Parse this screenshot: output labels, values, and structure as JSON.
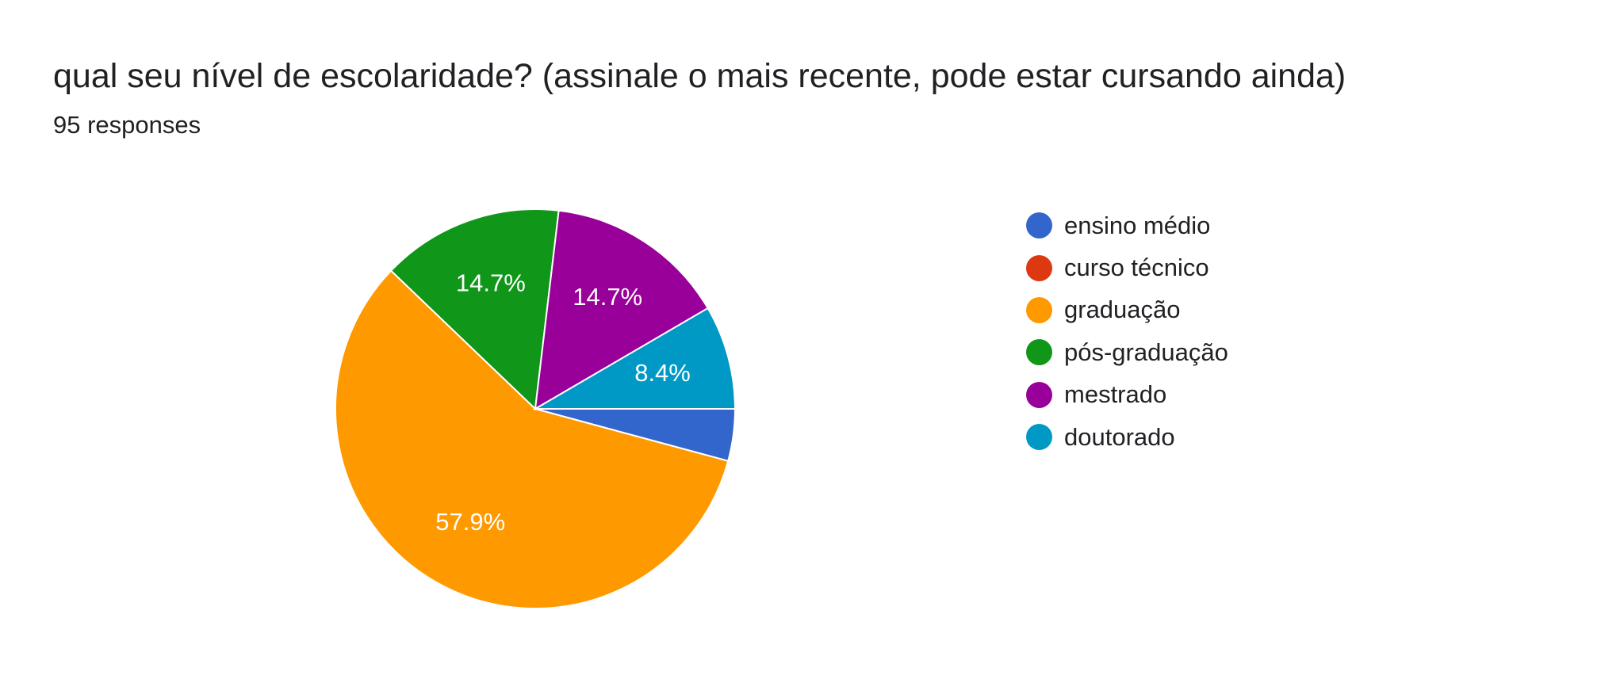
{
  "question": {
    "title": "qual seu nível de escolaridade? (assinale o mais recente, pode estar cursando ainda)",
    "responses": "95 responses"
  },
  "chart_data": {
    "type": "pie",
    "total_responses": 95,
    "slices": [
      {
        "label": "ensino médio",
        "percent": 4.2,
        "display": "",
        "color": "#3366cc"
      },
      {
        "label": "curso técnico",
        "percent": 0,
        "display": "",
        "color": "#dc3912"
      },
      {
        "label": "graduação",
        "percent": 57.9,
        "display": "57.9%",
        "color": "#ff9900"
      },
      {
        "label": "pós-graduação",
        "percent": 14.7,
        "display": "14.7%",
        "color": "#109618"
      },
      {
        "label": "mestrado",
        "percent": 14.7,
        "display": "14.7%",
        "color": "#990099"
      },
      {
        "label": "doutorado",
        "percent": 8.4,
        "display": "8.4%",
        "color": "#0099c6"
      }
    ],
    "legend_position": "right"
  }
}
